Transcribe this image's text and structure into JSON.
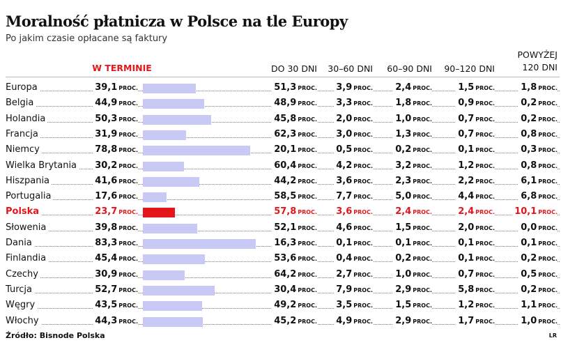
{
  "chart_data": {
    "type": "bar",
    "title": "Moralność płatnicza w Polsce na tle Europy",
    "subtitle": "Po jakim czasie opłacane są faktury",
    "unit": "PROC.",
    "source": "Źródło: Bisnode Polska",
    "credit": "LR",
    "color": "#c9c9f6",
    "highlight_category": "Polska",
    "highlight_color": "#e3161b",
    "categories": [
      "Europa",
      "Belgia",
      "Holandia",
      "Francja",
      "Niemcy",
      "Wielka Brytania",
      "Hiszpania",
      "Portugalia",
      "Polska",
      "Słowenia",
      "Dania",
      "Finlandia",
      "Czechy",
      "Turcja",
      "Węgry",
      "Włochy"
    ],
    "series": [
      {
        "name": "W TERMINIE",
        "values": [
          39.1,
          44.9,
          50.3,
          31.9,
          78.8,
          30.2,
          41.6,
          17.6,
          23.7,
          39.8,
          83.3,
          45.4,
          30.9,
          52.7,
          43.5,
          44.3
        ],
        "value_labels": [
          "39,1",
          "44,9",
          "50,3",
          "31,9",
          "78,8",
          "30,2",
          "41,6",
          "17,6",
          "23,7",
          "39,8",
          "83,3",
          "45,4",
          "30,9",
          "52,7",
          "43,5",
          "44,3"
        ]
      },
      {
        "name": "DO 30 DNI",
        "values": [
          51.3,
          48.9,
          45.8,
          62.3,
          20.1,
          60.4,
          44.2,
          58.5,
          57.8,
          52.1,
          16.3,
          53.6,
          64.2,
          30.4,
          49.2,
          45.2
        ],
        "value_labels": [
          "51,3",
          "48,9",
          "45,8",
          "62,3",
          "20,1",
          "60,4",
          "44,2",
          "58,5",
          "57,8",
          "52,1",
          "16,3",
          "53,6",
          "64,2",
          "30,4",
          "49,2",
          "45,2"
        ]
      },
      {
        "name": "30–60 DNI",
        "values": [
          3.9,
          3.3,
          2.0,
          3.0,
          0.5,
          4.2,
          3.6,
          7.7,
          3.6,
          4.6,
          0.1,
          0.4,
          2.7,
          7.9,
          3.5,
          4.9
        ],
        "value_labels": [
          "3,9",
          "3,3",
          "2,0",
          "3,0",
          "0,5",
          "4,2",
          "3,6",
          "7,7",
          "3,6",
          "4,6",
          "0,1",
          "0,4",
          "2,7",
          "7,9",
          "3,5",
          "4,9"
        ]
      },
      {
        "name": "60–90 DNI",
        "values": [
          2.4,
          1.8,
          1.0,
          1.3,
          0.2,
          3.2,
          2.3,
          5.0,
          2.4,
          1.5,
          0.1,
          0.2,
          1.0,
          2.9,
          1.5,
          2.9
        ],
        "value_labels": [
          "2,4",
          "1,8",
          "1,0",
          "1,3",
          "0,2",
          "3,2",
          "2,3",
          "5,0",
          "2,4",
          "1,5",
          "0,1",
          "0,2",
          "1,0",
          "2,9",
          "1,5",
          "2,9"
        ]
      },
      {
        "name": "90–120 DNI",
        "values": [
          1.5,
          0.9,
          0.7,
          0.7,
          0.1,
          1.2,
          2.2,
          4.4,
          2.4,
          2.0,
          0.1,
          0.1,
          0.7,
          5.8,
          1.2,
          1.7
        ],
        "value_labels": [
          "1,5",
          "0,9",
          "0,7",
          "0,7",
          "0,1",
          "1,2",
          "2,2",
          "4,4",
          "2,4",
          "2,0",
          "0,1",
          "0,1",
          "0,7",
          "5,8",
          "1,2",
          "1,7"
        ]
      },
      {
        "name": "POWYŻEJ 120 DNI",
        "values": [
          1.8,
          0.2,
          0.2,
          0.8,
          0.3,
          0.8,
          6.1,
          6.8,
          10.1,
          0.0,
          0.1,
          0.2,
          0.5,
          0.2,
          1.1,
          1.0
        ],
        "value_labels": [
          "1,8",
          "0,2",
          "0,2",
          "0,8",
          "0,3",
          "0,8",
          "6,1",
          "6,8",
          "10,1",
          "0,0",
          "0,1",
          "0,2",
          "0,5",
          "0,2",
          "1,1",
          "1,0"
        ]
      }
    ]
  }
}
